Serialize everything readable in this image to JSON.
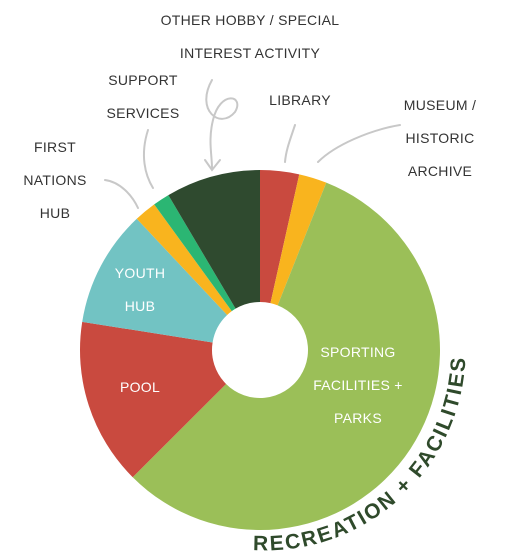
{
  "chart_data": {
    "type": "donut",
    "categories": [
      "LIBRARY",
      "MUSEUM /\nHISTORIC\nARCHIVE",
      "SPORTING\nFACILITIES +\nPARKS",
      "POOL",
      "YOUTH\nHUB",
      "FIRST\nNATIONS\nHUB",
      "SUPPORT\nSERVICES",
      "OTHER HOBBY / SPECIAL\nINTEREST ACTIVITY"
    ],
    "values": [
      3.5,
      2.5,
      56.5,
      15,
      10.5,
      2,
      1.5,
      8.5
    ],
    "colors": [
      "#c94a3f",
      "#f9b41e",
      "#9bbf58",
      "#c94a3f",
      "#72c3c3",
      "#f9b41e",
      "#2bb673",
      "#2f4a2f"
    ],
    "annotation": "RECREATION + FACILITIES"
  }
}
